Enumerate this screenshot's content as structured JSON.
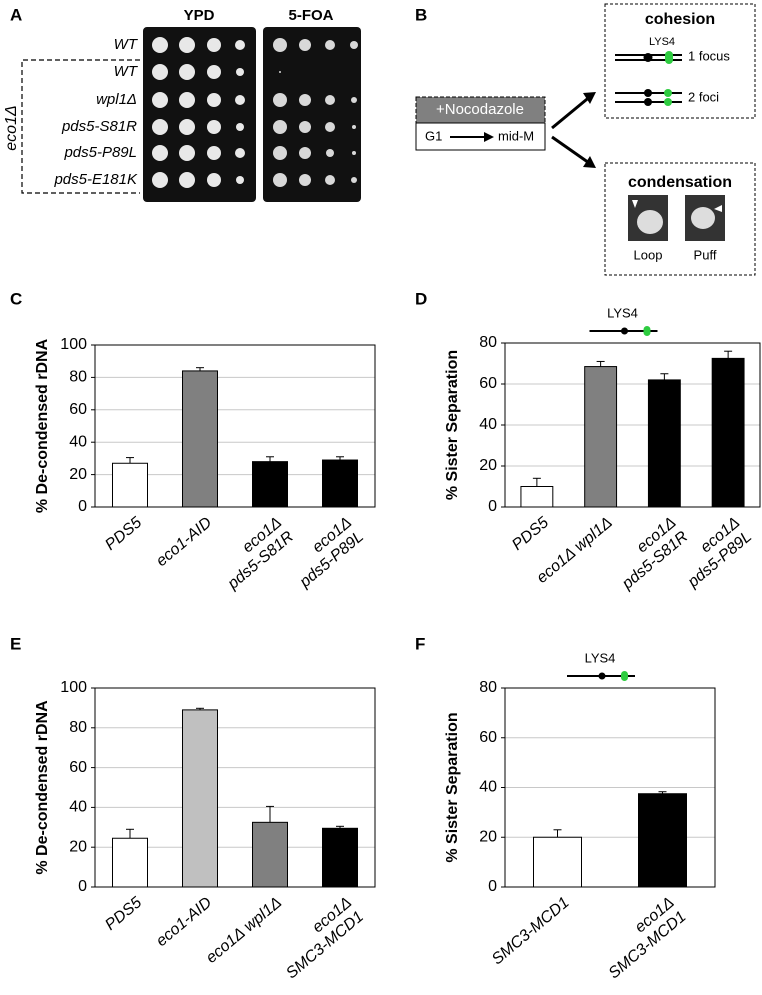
{
  "panel_a": {
    "label": "A",
    "columns": [
      "YPD",
      "5-FOA"
    ],
    "rows": [
      "WT",
      "WT",
      "wpl1Δ",
      "pds5-S81R",
      "pds5-P89L",
      "pds5-E181K"
    ],
    "group": "eco1Δ"
  },
  "panel_b": {
    "label": "B",
    "treatment": "+Nocodazole",
    "from": "G1",
    "to": "mid-M",
    "cohesion": {
      "title": "cohesion",
      "locus": "LYS4",
      "one": "1 focus",
      "two": "2 foci"
    },
    "condensation": {
      "title": "condensation",
      "loop": "Loop",
      "puff": "Puff"
    }
  },
  "chart_data": [
    {
      "type": "bar",
      "label": "C",
      "y_label": "% De-condensed rDNA",
      "categories": [
        "PDS5",
        "eco1-AID",
        "eco1Δ\npds5-S81R",
        "eco1Δ\npds5-P89L"
      ],
      "values": [
        27,
        84,
        28,
        29
      ],
      "errors": [
        3.5,
        2,
        3,
        2
      ],
      "colors": [
        "#ffffff",
        "#808080",
        "#000000",
        "#000000"
      ],
      "ylim": [
        0,
        100
      ],
      "yticks": [
        0,
        20,
        40,
        60,
        80,
        100
      ],
      "grid": true
    },
    {
      "type": "bar",
      "label": "D",
      "y_label": "% Sister Separation",
      "annotation": "LYS4",
      "categories": [
        "PDS5",
        "eco1Δ wpl1Δ",
        "eco1Δ\npds5-S81R",
        "eco1Δ\npds5-P89L"
      ],
      "values": [
        10,
        68.5,
        62,
        72.5
      ],
      "errors": [
        4,
        2.5,
        3,
        3.5
      ],
      "colors": [
        "#ffffff",
        "#808080",
        "#000000",
        "#000000"
      ],
      "ylim": [
        0,
        80
      ],
      "yticks": [
        0,
        20,
        40,
        60,
        80
      ],
      "grid": true
    },
    {
      "type": "bar",
      "label": "E",
      "y_label": "% De-condensed rDNA",
      "categories": [
        "PDS5",
        "eco1-AID",
        "eco1Δ wpl1Δ",
        "eco1Δ\nSMC3-MCD1"
      ],
      "values": [
        24.5,
        89,
        32.5,
        29.5
      ],
      "errors": [
        4.5,
        0.8,
        8,
        1
      ],
      "colors": [
        "#ffffff",
        "#c0c0c0",
        "#808080",
        "#000000"
      ],
      "ylim": [
        0,
        100
      ],
      "yticks": [
        0,
        20,
        40,
        60,
        80,
        100
      ],
      "grid": true
    },
    {
      "type": "bar",
      "label": "F",
      "y_label": "% Sister Separation",
      "annotation": "LYS4",
      "categories": [
        "SMC3-MCD1",
        "eco1Δ\nSMC3-MCD1"
      ],
      "values": [
        20,
        37.5
      ],
      "errors": [
        3,
        0.8
      ],
      "colors": [
        "#ffffff",
        "#000000"
      ],
      "ylim": [
        0,
        80
      ],
      "yticks": [
        0,
        20,
        40,
        60,
        80
      ],
      "grid": true
    }
  ]
}
